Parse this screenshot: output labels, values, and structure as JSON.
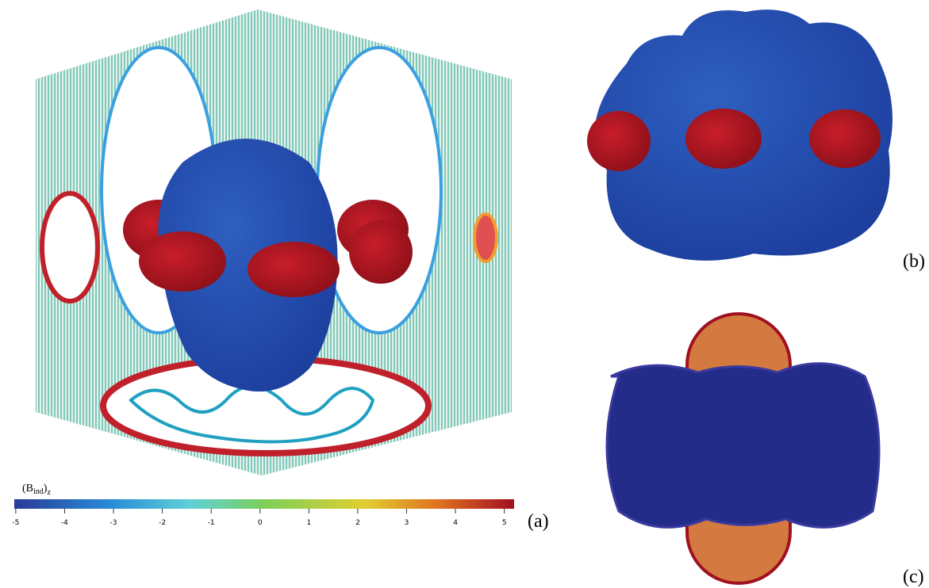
{
  "colorbar": {
    "label": [
      "(B",
      "ind",
      ")",
      "z"
    ],
    "range": [
      -5.03,
      5.2
    ],
    "ticks": [
      -5,
      -4,
      -3,
      -2,
      -1,
      0,
      1,
      2,
      3,
      4,
      5
    ]
  },
  "panels": [
    "(a)",
    "(b)",
    "(c)"
  ]
}
